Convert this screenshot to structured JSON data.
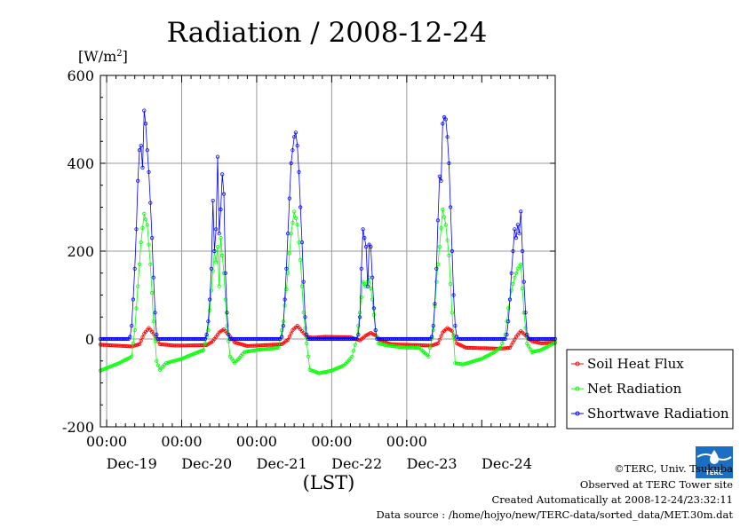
{
  "chart_data": {
    "type": "line",
    "title": "Radiation / 2008-12-24",
    "yunit_base": "[W/m",
    "yunit_sup": "2",
    "yunit_end": "]",
    "xlabel": "(LST)",
    "ylim": [
      -200,
      600
    ],
    "yticks": [
      -200,
      0,
      200,
      400,
      600
    ],
    "time_labels": [
      "00:00",
      "00:00",
      "00:00",
      "00:00",
      "00:00"
    ],
    "day_labels": [
      "Dec-19",
      "Dec-20",
      "Dec-21",
      "Dec-22",
      "Dec-23",
      "Dec-24"
    ],
    "grid": true,
    "legend_position": "right",
    "x_start": "2008-12-18T22:00",
    "x_end": "2008-12-24T23:30",
    "x_step_hours": 0.5,
    "series": [
      {
        "name": "Soil Heat Flux",
        "color": "#ff0000",
        "keypoints": [
          [
            "2008-12-18T22:00",
            -13
          ],
          [
            "2008-12-19T08:00",
            -17
          ],
          [
            "2008-12-19T10:30",
            -12
          ],
          [
            "2008-12-19T12:00",
            12
          ],
          [
            "2008-12-19T13:30",
            25
          ],
          [
            "2008-12-19T15:00",
            12
          ],
          [
            "2008-12-19T17:00",
            -12
          ],
          [
            "2008-12-19T22:00",
            -15
          ],
          [
            "2008-12-20T08:00",
            -14
          ],
          [
            "2008-12-20T10:00",
            -5
          ],
          [
            "2008-12-20T12:00",
            15
          ],
          [
            "2008-12-20T13:30",
            22
          ],
          [
            "2008-12-20T15:00",
            10
          ],
          [
            "2008-12-20T17:00",
            -8
          ],
          [
            "2008-12-20T21:00",
            -16
          ],
          [
            "2008-12-21T08:00",
            -12
          ],
          [
            "2008-12-21T10:00",
            -2
          ],
          [
            "2008-12-21T11:30",
            20
          ],
          [
            "2008-12-21T13:00",
            30
          ],
          [
            "2008-12-21T14:30",
            18
          ],
          [
            "2008-12-21T16:00",
            5
          ],
          [
            "2008-12-21T18:00",
            3
          ],
          [
            "2008-12-21T22:00",
            5
          ],
          [
            "2008-12-22T06:00",
            4
          ],
          [
            "2008-12-22T09:00",
            -3
          ],
          [
            "2008-12-22T11:00",
            8
          ],
          [
            "2008-12-22T12:30",
            14
          ],
          [
            "2008-12-22T14:00",
            8
          ],
          [
            "2008-12-22T16:00",
            -5
          ],
          [
            "2008-12-22T19:00",
            -12
          ],
          [
            "2008-12-23T08:00",
            -15
          ],
          [
            "2008-12-23T10:00",
            -10
          ],
          [
            "2008-12-23T11:30",
            15
          ],
          [
            "2008-12-23T13:00",
            25
          ],
          [
            "2008-12-23T14:30",
            18
          ],
          [
            "2008-12-23T16:00",
            -10
          ],
          [
            "2008-12-23T19:00",
            -20
          ],
          [
            "2008-12-24T06:00",
            -22
          ],
          [
            "2008-12-24T09:00",
            -20
          ],
          [
            "2008-12-24T11:00",
            5
          ],
          [
            "2008-12-24T12:30",
            18
          ],
          [
            "2008-12-24T14:00",
            8
          ],
          [
            "2008-12-24T16:00",
            -5
          ],
          [
            "2008-12-24T19:00",
            -10
          ],
          [
            "2008-12-24T23:30",
            -8
          ]
        ]
      },
      {
        "name": "Net Radiation",
        "color": "#00ff00",
        "keypoints": [
          [
            "2008-12-18T22:00",
            -72
          ],
          [
            "2008-12-19T04:00",
            -55
          ],
          [
            "2008-12-19T08:00",
            -40
          ],
          [
            "2008-12-19T09:00",
            20
          ],
          [
            "2008-12-19T10:00",
            120
          ],
          [
            "2008-12-19T11:00",
            220
          ],
          [
            "2008-12-19T12:00",
            285
          ],
          [
            "2008-12-19T13:00",
            260
          ],
          [
            "2008-12-19T14:00",
            170
          ],
          [
            "2008-12-19T15:00",
            40
          ],
          [
            "2008-12-19T16:00",
            -50
          ],
          [
            "2008-12-19T17:00",
            -70
          ],
          [
            "2008-12-19T19:00",
            -55
          ],
          [
            "2008-12-20T00:00",
            -45
          ],
          [
            "2008-12-20T07:00",
            -25
          ],
          [
            "2008-12-20T08:30",
            20
          ],
          [
            "2008-12-20T09:30",
            110
          ],
          [
            "2008-12-20T10:30",
            200
          ],
          [
            "2008-12-20T11:00",
            175
          ],
          [
            "2008-12-20T11:30",
            210
          ],
          [
            "2008-12-20T12:00",
            120
          ],
          [
            "2008-12-20T12:30",
            230
          ],
          [
            "2008-12-20T13:30",
            150
          ],
          [
            "2008-12-20T14:30",
            30
          ],
          [
            "2008-12-20T15:30",
            -40
          ],
          [
            "2008-12-20T17:00",
            -55
          ],
          [
            "2008-12-20T20:00",
            -30
          ],
          [
            "2008-12-21T00:00",
            -25
          ],
          [
            "2008-12-21T07:00",
            -20
          ],
          [
            "2008-12-21T08:30",
            40
          ],
          [
            "2008-12-21T10:00",
            150
          ],
          [
            "2008-12-21T11:00",
            240
          ],
          [
            "2008-12-21T12:00",
            290
          ],
          [
            "2008-12-21T13:00",
            260
          ],
          [
            "2008-12-21T14:00",
            180
          ],
          [
            "2008-12-21T15:00",
            60
          ],
          [
            "2008-12-21T16:00",
            -10
          ],
          [
            "2008-12-21T17:00",
            -70
          ],
          [
            "2008-12-21T20:00",
            -78
          ],
          [
            "2008-12-22T00:00",
            -72
          ],
          [
            "2008-12-22T04:00",
            -60
          ],
          [
            "2008-12-22T06:30",
            -40
          ],
          [
            "2008-12-22T08:00",
            0
          ],
          [
            "2008-12-22T09:00",
            60
          ],
          [
            "2008-12-22T10:00",
            130
          ],
          [
            "2008-12-22T11:00",
            120
          ],
          [
            "2008-12-22T12:00",
            140
          ],
          [
            "2008-12-22T13:00",
            90
          ],
          [
            "2008-12-22T14:00",
            20
          ],
          [
            "2008-12-22T15:00",
            -10
          ],
          [
            "2008-12-22T18:00",
            -15
          ],
          [
            "2008-12-23T00:00",
            -20
          ],
          [
            "2008-12-23T04:00",
            -20
          ],
          [
            "2008-12-23T07:00",
            -40
          ],
          [
            "2008-12-23T08:30",
            20
          ],
          [
            "2008-12-23T09:30",
            130
          ],
          [
            "2008-12-23T10:30",
            210
          ],
          [
            "2008-12-23T11:30",
            295
          ],
          [
            "2008-12-23T12:30",
            260
          ],
          [
            "2008-12-23T13:30",
            190
          ],
          [
            "2008-12-23T14:30",
            60
          ],
          [
            "2008-12-23T15:30",
            -55
          ],
          [
            "2008-12-23T18:00",
            -58
          ],
          [
            "2008-12-24T00:00",
            -45
          ],
          [
            "2008-12-24T04:00",
            -30
          ],
          [
            "2008-12-24T06:00",
            -20
          ],
          [
            "2008-12-24T07:30",
            10
          ],
          [
            "2008-12-24T08:30",
            70
          ],
          [
            "2008-12-24T09:30",
            110
          ],
          [
            "2008-12-24T10:30",
            140
          ],
          [
            "2008-12-24T11:30",
            160
          ],
          [
            "2008-12-24T12:30",
            170
          ],
          [
            "2008-12-24T13:30",
            60
          ],
          [
            "2008-12-24T14:30",
            -10
          ],
          [
            "2008-12-24T16:00",
            -30
          ],
          [
            "2008-12-24T19:00",
            -25
          ],
          [
            "2008-12-24T23:30",
            -8
          ]
        ]
      },
      {
        "name": "Shortwave Radiation",
        "color": "#0000ff",
        "keypoints": [
          [
            "2008-12-18T22:00",
            0
          ],
          [
            "2008-12-19T07:00",
            0
          ],
          [
            "2008-12-19T07:30",
            5
          ],
          [
            "2008-12-19T08:00",
            30
          ],
          [
            "2008-12-19T08:30",
            90
          ],
          [
            "2008-12-19T09:00",
            160
          ],
          [
            "2008-12-19T09:30",
            250
          ],
          [
            "2008-12-19T10:00",
            360
          ],
          [
            "2008-12-19T10:30",
            430
          ],
          [
            "2008-12-19T11:00",
            440
          ],
          [
            "2008-12-19T11:30",
            390
          ],
          [
            "2008-12-19T12:00",
            520
          ],
          [
            "2008-12-19T12:30",
            490
          ],
          [
            "2008-12-19T13:00",
            430
          ],
          [
            "2008-12-19T13:30",
            380
          ],
          [
            "2008-12-19T14:00",
            310
          ],
          [
            "2008-12-19T14:30",
            230
          ],
          [
            "2008-12-19T15:00",
            140
          ],
          [
            "2008-12-19T15:30",
            60
          ],
          [
            "2008-12-19T16:00",
            10
          ],
          [
            "2008-12-19T16:30",
            0
          ],
          [
            "2008-12-20T07:30",
            0
          ],
          [
            "2008-12-20T08:00",
            10
          ],
          [
            "2008-12-20T08:30",
            40
          ],
          [
            "2008-12-20T09:00",
            90
          ],
          [
            "2008-12-20T09:30",
            160
          ],
          [
            "2008-12-20T10:00",
            315
          ],
          [
            "2008-12-20T10:30",
            200
          ],
          [
            "2008-12-20T11:00",
            250
          ],
          [
            "2008-12-20T11:30",
            415
          ],
          [
            "2008-12-20T12:00",
            240
          ],
          [
            "2008-12-20T12:30",
            295
          ],
          [
            "2008-12-20T13:00",
            375
          ],
          [
            "2008-12-20T13:30",
            330
          ],
          [
            "2008-12-20T14:00",
            150
          ],
          [
            "2008-12-20T14:30",
            60
          ],
          [
            "2008-12-20T15:00",
            10
          ],
          [
            "2008-12-20T15:30",
            0
          ],
          [
            "2008-12-21T07:30",
            0
          ],
          [
            "2008-12-21T08:00",
            5
          ],
          [
            "2008-12-21T08:30",
            30
          ],
          [
            "2008-12-21T09:00",
            90
          ],
          [
            "2008-12-21T09:30",
            160
          ],
          [
            "2008-12-21T10:00",
            240
          ],
          [
            "2008-12-21T10:30",
            320
          ],
          [
            "2008-12-21T11:00",
            400
          ],
          [
            "2008-12-21T11:30",
            430
          ],
          [
            "2008-12-21T12:00",
            460
          ],
          [
            "2008-12-21T12:30",
            470
          ],
          [
            "2008-12-21T13:00",
            440
          ],
          [
            "2008-12-21T13:30",
            380
          ],
          [
            "2008-12-21T14:00",
            300
          ],
          [
            "2008-12-21T14:30",
            220
          ],
          [
            "2008-12-21T15:00",
            130
          ],
          [
            "2008-12-21T15:30",
            50
          ],
          [
            "2008-12-21T16:00",
            10
          ],
          [
            "2008-12-21T16:30",
            0
          ],
          [
            "2008-12-22T08:00",
            0
          ],
          [
            "2008-12-22T08:30",
            10
          ],
          [
            "2008-12-22T09:00",
            50
          ],
          [
            "2008-12-22T09:30",
            160
          ],
          [
            "2008-12-22T10:00",
            250
          ],
          [
            "2008-12-22T10:30",
            230
          ],
          [
            "2008-12-22T11:00",
            210
          ],
          [
            "2008-12-22T11:30",
            120
          ],
          [
            "2008-12-22T12:00",
            215
          ],
          [
            "2008-12-22T12:30",
            210
          ],
          [
            "2008-12-22T13:00",
            140
          ],
          [
            "2008-12-22T13:30",
            70
          ],
          [
            "2008-12-22T14:00",
            20
          ],
          [
            "2008-12-22T14:30",
            0
          ],
          [
            "2008-12-23T07:30",
            0
          ],
          [
            "2008-12-23T08:00",
            5
          ],
          [
            "2008-12-23T08:30",
            30
          ],
          [
            "2008-12-23T09:00",
            80
          ],
          [
            "2008-12-23T09:30",
            160
          ],
          [
            "2008-12-23T10:00",
            270
          ],
          [
            "2008-12-23T10:30",
            370
          ],
          [
            "2008-12-23T11:00",
            360
          ],
          [
            "2008-12-23T11:30",
            490
          ],
          [
            "2008-12-23T12:00",
            505
          ],
          [
            "2008-12-23T12:30",
            500
          ],
          [
            "2008-12-23T13:00",
            460
          ],
          [
            "2008-12-23T13:30",
            400
          ],
          [
            "2008-12-23T14:00",
            300
          ],
          [
            "2008-12-23T14:30",
            200
          ],
          [
            "2008-12-23T15:00",
            100
          ],
          [
            "2008-12-23T15:30",
            30
          ],
          [
            "2008-12-23T16:00",
            5
          ],
          [
            "2008-12-23T16:30",
            0
          ],
          [
            "2008-12-24T07:30",
            0
          ],
          [
            "2008-12-24T08:00",
            10
          ],
          [
            "2008-12-24T08:30",
            40
          ],
          [
            "2008-12-24T09:00",
            90
          ],
          [
            "2008-12-24T09:30",
            150
          ],
          [
            "2008-12-24T10:00",
            200
          ],
          [
            "2008-12-24T10:30",
            250
          ],
          [
            "2008-12-24T11:00",
            230
          ],
          [
            "2008-12-24T11:30",
            260
          ],
          [
            "2008-12-24T12:00",
            240
          ],
          [
            "2008-12-24T12:30",
            290
          ],
          [
            "2008-12-24T13:00",
            200
          ],
          [
            "2008-12-24T13:30",
            130
          ],
          [
            "2008-12-24T14:00",
            60
          ],
          [
            "2008-12-24T14:30",
            10
          ],
          [
            "2008-12-24T15:00",
            0
          ],
          [
            "2008-12-24T23:30",
            0
          ]
        ]
      }
    ]
  },
  "credits": {
    "copyright": "©TERC, Univ. Tsukuba",
    "observed": "Observed at TERC Tower site",
    "created": "Created Automatically at 2008-12-24/23:32:11",
    "source": "Data source : /home/hojyo/new/TERC-data/sorted_data/MET.30m.dat"
  },
  "logo": {
    "text": "TERC"
  }
}
